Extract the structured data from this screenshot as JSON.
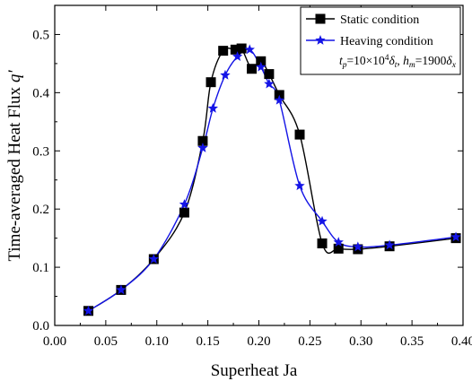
{
  "chart_data": {
    "type": "line",
    "xlabel": "Superheat  Ja",
    "ylabel": "Time-averaged Heat Flux",
    "ylabel_symbol": "q'",
    "xlim": [
      0.0,
      0.4
    ],
    "ylim": [
      0.0,
      0.55
    ],
    "xticks": [
      0.0,
      0.05,
      0.1,
      0.15,
      0.2,
      0.25,
      0.3,
      0.35,
      0.4
    ],
    "xtick_labels": [
      "0.00",
      "0.05",
      "0.10",
      "0.15",
      "0.20",
      "0.25",
      "0.30",
      "0.35",
      "0.40"
    ],
    "yticks": [
      0.0,
      0.1,
      0.2,
      0.3,
      0.4,
      0.5
    ],
    "ytick_labels": [
      "0.0",
      "0.1",
      "0.2",
      "0.3",
      "0.4",
      "0.5"
    ],
    "grid": false,
    "legend_position": "top-right",
    "legend_note": {
      "t_base": "t",
      "t_sub": "p",
      "t_eq": "=10×10",
      "t_sup": "4",
      "t_delta": "δ",
      "t_delta_sub": "t",
      "sep": ", ",
      "h_base": "h",
      "h_sub": "m",
      "h_eq": "=1900",
      "h_delta": "δ",
      "h_delta_sub": "x"
    },
    "series": [
      {
        "name": "Static condition",
        "color": "#000000",
        "marker": "square",
        "x": [
          0.033,
          0.065,
          0.097,
          0.127,
          0.145,
          0.153,
          0.165,
          0.177,
          0.183,
          0.193,
          0.202,
          0.21,
          0.22,
          0.24,
          0.262,
          0.278,
          0.297,
          0.328,
          0.393
        ],
        "y": [
          0.025,
          0.061,
          0.114,
          0.194,
          0.317,
          0.418,
          0.472,
          0.474,
          0.476,
          0.441,
          0.454,
          0.432,
          0.396,
          0.328,
          0.141,
          0.132,
          0.131,
          0.136,
          0.15
        ]
      },
      {
        "name": "Heaving condition",
        "color": "#1414e6",
        "marker": "star",
        "x": [
          0.033,
          0.065,
          0.097,
          0.127,
          0.145,
          0.155,
          0.167,
          0.179,
          0.191,
          0.202,
          0.21,
          0.22,
          0.24,
          0.262,
          0.278,
          0.297,
          0.328,
          0.393
        ],
        "y": [
          0.025,
          0.061,
          0.114,
          0.208,
          0.305,
          0.373,
          0.43,
          0.462,
          0.474,
          0.444,
          0.415,
          0.387,
          0.24,
          0.179,
          0.143,
          0.135,
          0.138,
          0.152
        ]
      }
    ]
  }
}
